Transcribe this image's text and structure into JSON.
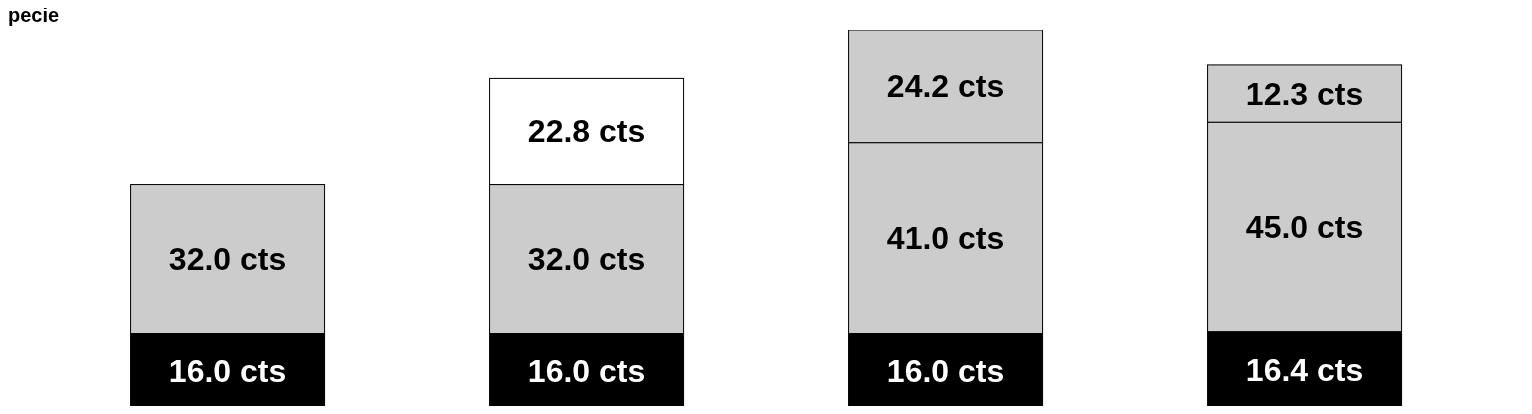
{
  "chart_data": {
    "type": "bar",
    "title": "pecie",
    "stacked": true,
    "categories": [
      null,
      null,
      null,
      null
    ],
    "series": [
      {
        "colors": [
          "#000000",
          "#000000",
          "#000000",
          "#000000"
        ],
        "values": [
          16.0,
          16.0,
          16.0,
          16.4
        ],
        "value_labels": [
          "16.0 cts",
          "16.0 cts",
          "16.0 cts",
          "16.4 cts"
        ]
      },
      {
        "colors": [
          "#cccccc",
          "#cccccc",
          "#cccccc",
          "#cccccc"
        ],
        "values": [
          32.0,
          32.0,
          41.0,
          45.0
        ],
        "value_labels": [
          "32.0 cts",
          "32.0 cts",
          "41.0 cts",
          "45.0 cts"
        ]
      },
      {
        "colors": [
          null,
          "#ffffff",
          "#cccccc",
          "#cccccc"
        ],
        "values": [
          null,
          22.8,
          24.2,
          12.3
        ],
        "value_labels": [
          null,
          "22.8 cts",
          "24.2 cts",
          "12.3 cts"
        ]
      }
    ],
    "grid": false,
    "legend": false
  }
}
